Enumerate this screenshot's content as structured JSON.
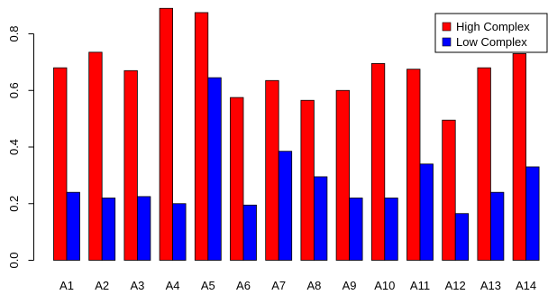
{
  "chart_data": {
    "type": "bar",
    "title": "",
    "xlabel": "",
    "ylabel": "",
    "categories": [
      "A1",
      "A2",
      "A3",
      "A4",
      "A5",
      "A6",
      "A7",
      "A8",
      "A9",
      "A10",
      "A11",
      "A12",
      "A13",
      "A14"
    ],
    "series": [
      {
        "name": "High Complex",
        "color": "#ff0000",
        "values": [
          0.68,
          0.735,
          0.67,
          0.89,
          0.875,
          0.575,
          0.635,
          0.565,
          0.6,
          0.695,
          0.675,
          0.495,
          0.68,
          0.73
        ]
      },
      {
        "name": "Low Complex",
        "color": "#0000ff",
        "values": [
          0.24,
          0.22,
          0.225,
          0.2,
          0.645,
          0.195,
          0.385,
          0.295,
          0.22,
          0.22,
          0.34,
          0.165,
          0.24,
          0.33
        ]
      }
    ],
    "yticks": [
      "0.0",
      "0.2",
      "0.4",
      "0.6",
      "0.8"
    ],
    "ylim": [
      0,
      0.92
    ],
    "legend_position": "top-right",
    "grid": false
  }
}
